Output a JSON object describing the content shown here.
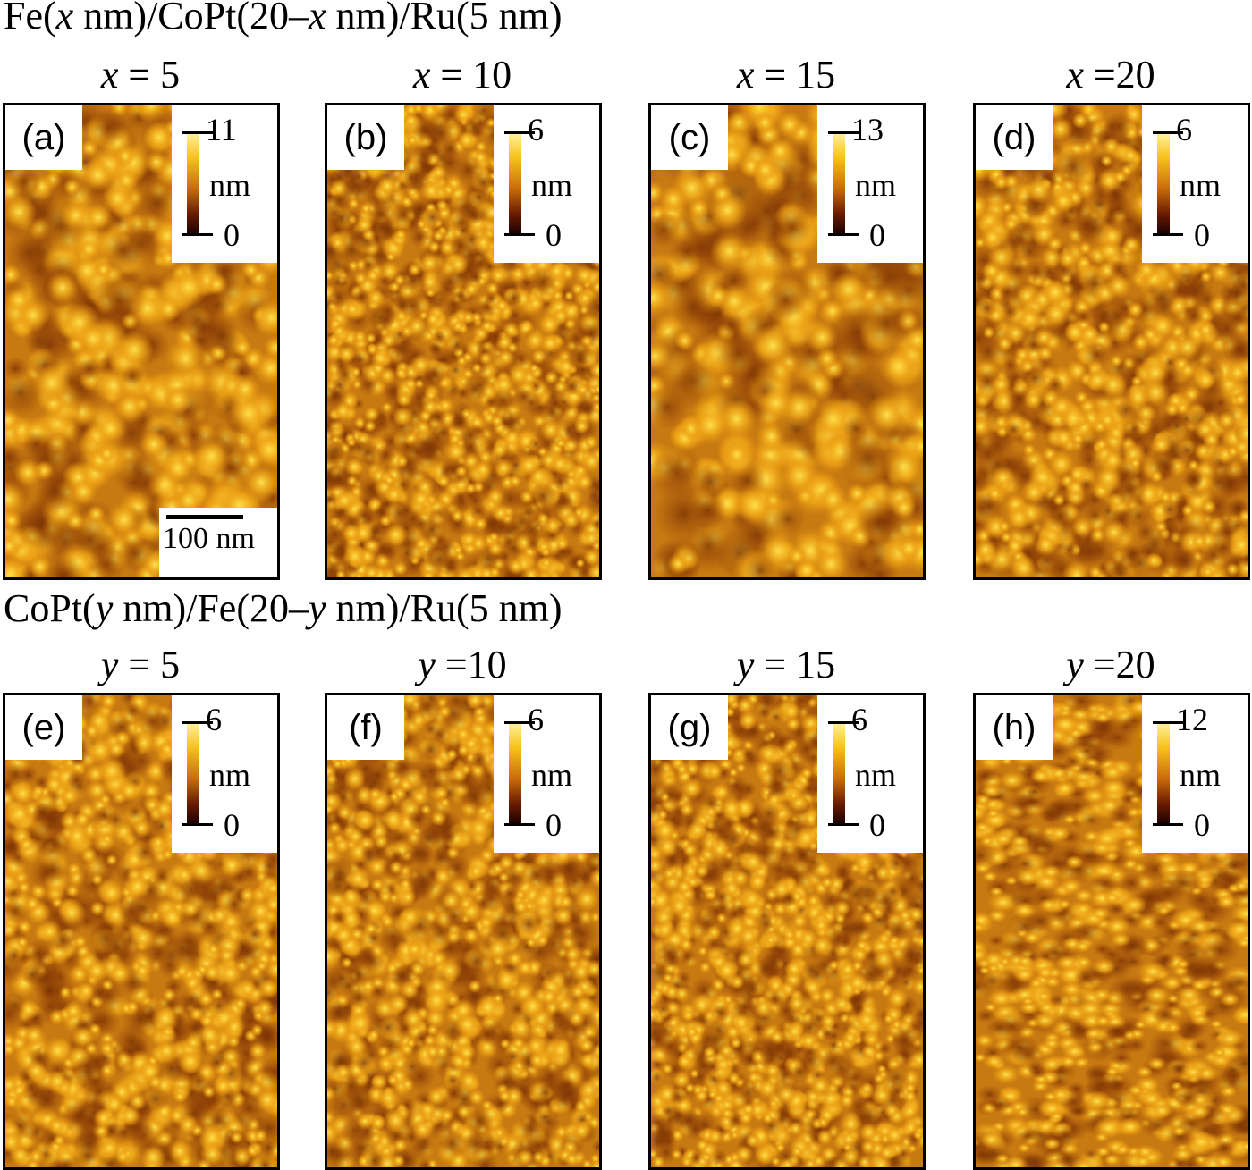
{
  "rows": [
    {
      "title_parts": [
        "Fe(",
        "x",
        " nm)/CoPt(20–",
        "x",
        " nm)/Ru(5 nm)"
      ]
    },
    {
      "title_parts": [
        "CoPt(",
        "y",
        " nm)/Fe(20–",
        "y",
        " nm)/Ru(5 nm)"
      ]
    }
  ],
  "panels": [
    {
      "label": "(a)",
      "var": "x",
      "eq": " = 5",
      "cmax": "11",
      "cunit": "nm",
      "cmin": "0"
    },
    {
      "label": "(b)",
      "var": "x",
      "eq": " = 10",
      "cmax": "6",
      "cunit": "nm",
      "cmin": "0"
    },
    {
      "label": "(c)",
      "var": "x",
      "eq": " = 15",
      "cmax": "13",
      "cunit": "nm",
      "cmin": "0"
    },
    {
      "label": "(d)",
      "var": "x",
      "eq": " =20",
      "cmax": "6",
      "cunit": "nm",
      "cmin": "0"
    },
    {
      "label": "(e)",
      "var": "y",
      "eq": " = 5",
      "cmax": "6",
      "cunit": "nm",
      "cmin": "0"
    },
    {
      "label": "(f)",
      "var": "y",
      "eq": " =10",
      "cmax": "6",
      "cunit": "nm",
      "cmin": "0"
    },
    {
      "label": "(g)",
      "var": "y",
      "eq": " = 15",
      "cmax": "6",
      "cunit": "nm",
      "cmin": "0"
    },
    {
      "label": "(h)",
      "var": "y",
      "eq": " =20",
      "cmax": "12",
      "cunit": "nm",
      "cmin": "0"
    }
  ],
  "scale_bar": "100 nm",
  "colormap": {
    "low": "#1a0000",
    "mid": "#c86e0c",
    "high": "#fff3a0"
  }
}
